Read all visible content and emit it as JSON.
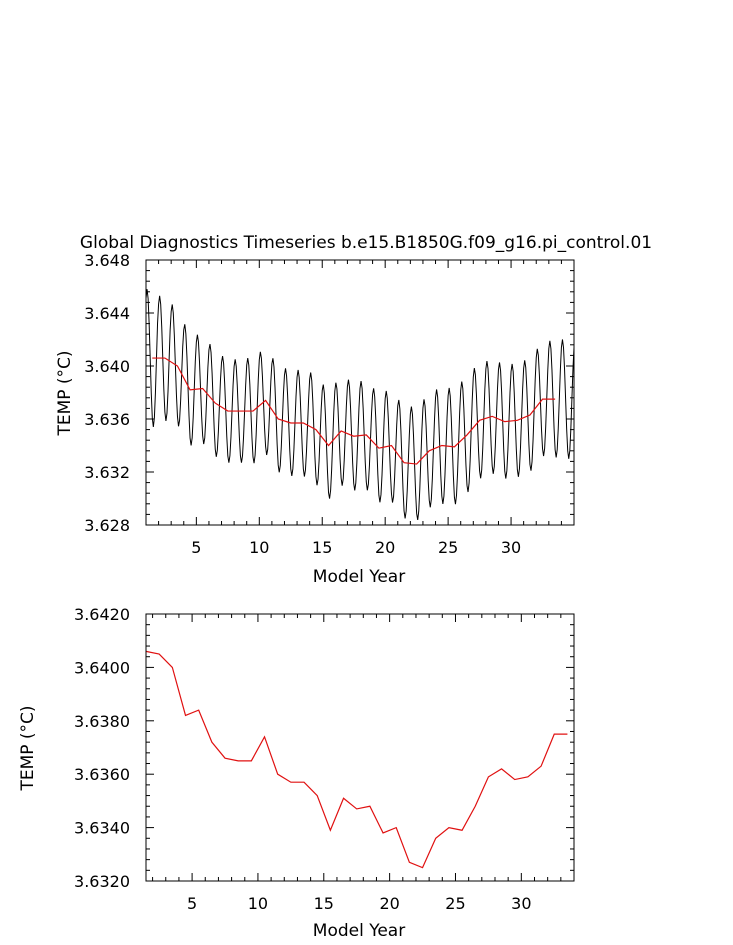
{
  "chart_data": [
    {
      "type": "line",
      "title": "Global Diagnostics Timeseries b.e15.B1850G.f09_g16.pi_control.01",
      "xlabel": "Model Year",
      "ylabel": "TEMP (°C)",
      "xlim": [
        1,
        35
      ],
      "ylim": [
        3.628,
        3.648
      ],
      "xticks": [
        5,
        10,
        15,
        20,
        25,
        30
      ],
      "xtick_labels": [
        "5",
        "10",
        "15",
        "20",
        "25",
        "30"
      ],
      "yticks": [
        3.628,
        3.632,
        3.636,
        3.64,
        3.644,
        3.648
      ],
      "ytick_labels": [
        "3.628",
        "3.632",
        "3.636",
        "3.640",
        "3.644",
        "3.648"
      ],
      "series": [
        {
          "kind": "monthly",
          "color": "#000000",
          "annual_cycle_amplitude": [
            0.0052,
            0.0047,
            0.0044,
            0.0042,
            0.0041,
            0.004,
            0.0039,
            0.0039,
            0.004,
            0.004,
            0.004,
            0.004,
            0.004,
            0.0041,
            0.0041,
            0.0041,
            0.0041,
            0.0041,
            0.0041,
            0.0042,
            0.0042,
            0.0043,
            0.0043,
            0.0044,
            0.0044,
            0.0044,
            0.0044,
            0.0043,
            0.0043,
            0.0043,
            0.0043,
            0.0043,
            0.0044,
            0.0045
          ],
          "annual_phase_fraction": 0.083,
          "values_source": "annual means below plus annual cycle"
        },
        {
          "kind": "annual",
          "color": "#e01010",
          "x": [
            1.5,
            2.5,
            3.5,
            4.5,
            5.5,
            6.5,
            7.5,
            8.5,
            9.5,
            10.5,
            11.5,
            12.5,
            13.5,
            14.5,
            15.5,
            16.5,
            17.5,
            18.5,
            19.5,
            20.5,
            21.5,
            22.5,
            23.5,
            24.5,
            25.5,
            26.5,
            27.5,
            28.5,
            29.5,
            30.5,
            31.5,
            32.5,
            33.5
          ],
          "values": [
            3.6406,
            3.6406,
            3.64,
            3.6382,
            3.6383,
            3.6372,
            3.6366,
            3.6366,
            3.6366,
            3.6374,
            3.636,
            3.6357,
            3.6357,
            3.6352,
            3.634,
            3.6351,
            3.6347,
            3.6348,
            3.6338,
            3.634,
            3.6327,
            3.6326,
            3.6336,
            3.634,
            3.6339,
            3.6348,
            3.6359,
            3.6362,
            3.6358,
            3.6359,
            3.6363,
            3.6375,
            3.6375
          ]
        }
      ]
    },
    {
      "type": "line",
      "xlabel": "Model Year",
      "ylabel": "TEMP (°C)",
      "xlim": [
        1.5,
        34
      ],
      "ylim": [
        3.632,
        3.642
      ],
      "xticks": [
        5,
        10,
        15,
        20,
        25,
        30
      ],
      "xtick_labels": [
        "5",
        "10",
        "15",
        "20",
        "25",
        "30"
      ],
      "yticks": [
        3.632,
        3.634,
        3.636,
        3.638,
        3.64,
        3.642
      ],
      "ytick_labels": [
        "3.6320",
        "3.6340",
        "3.6360",
        "3.6380",
        "3.6400",
        "3.6420"
      ],
      "series": [
        {
          "color": "#e01010",
          "x": [
            1.5,
            2.5,
            3.5,
            4.5,
            5.5,
            6.5,
            7.5,
            8.5,
            9.5,
            10.5,
            11.5,
            12.5,
            13.5,
            14.5,
            15.5,
            16.5,
            17.5,
            18.5,
            19.5,
            20.5,
            21.5,
            22.5,
            23.5,
            24.5,
            25.5,
            26.5,
            27.5,
            28.5,
            29.5,
            30.5,
            31.5,
            32.5,
            33.5
          ],
          "values": [
            3.6406,
            3.6405,
            3.64,
            3.6382,
            3.6384,
            3.6372,
            3.6366,
            3.6365,
            3.6365,
            3.6374,
            3.636,
            3.6357,
            3.6357,
            3.6352,
            3.6339,
            3.6351,
            3.6347,
            3.6348,
            3.6338,
            3.634,
            3.6327,
            3.6325,
            3.6336,
            3.634,
            3.6339,
            3.6348,
            3.6359,
            3.6362,
            3.6358,
            3.6359,
            3.6363,
            3.6375,
            3.6375
          ]
        }
      ]
    }
  ]
}
